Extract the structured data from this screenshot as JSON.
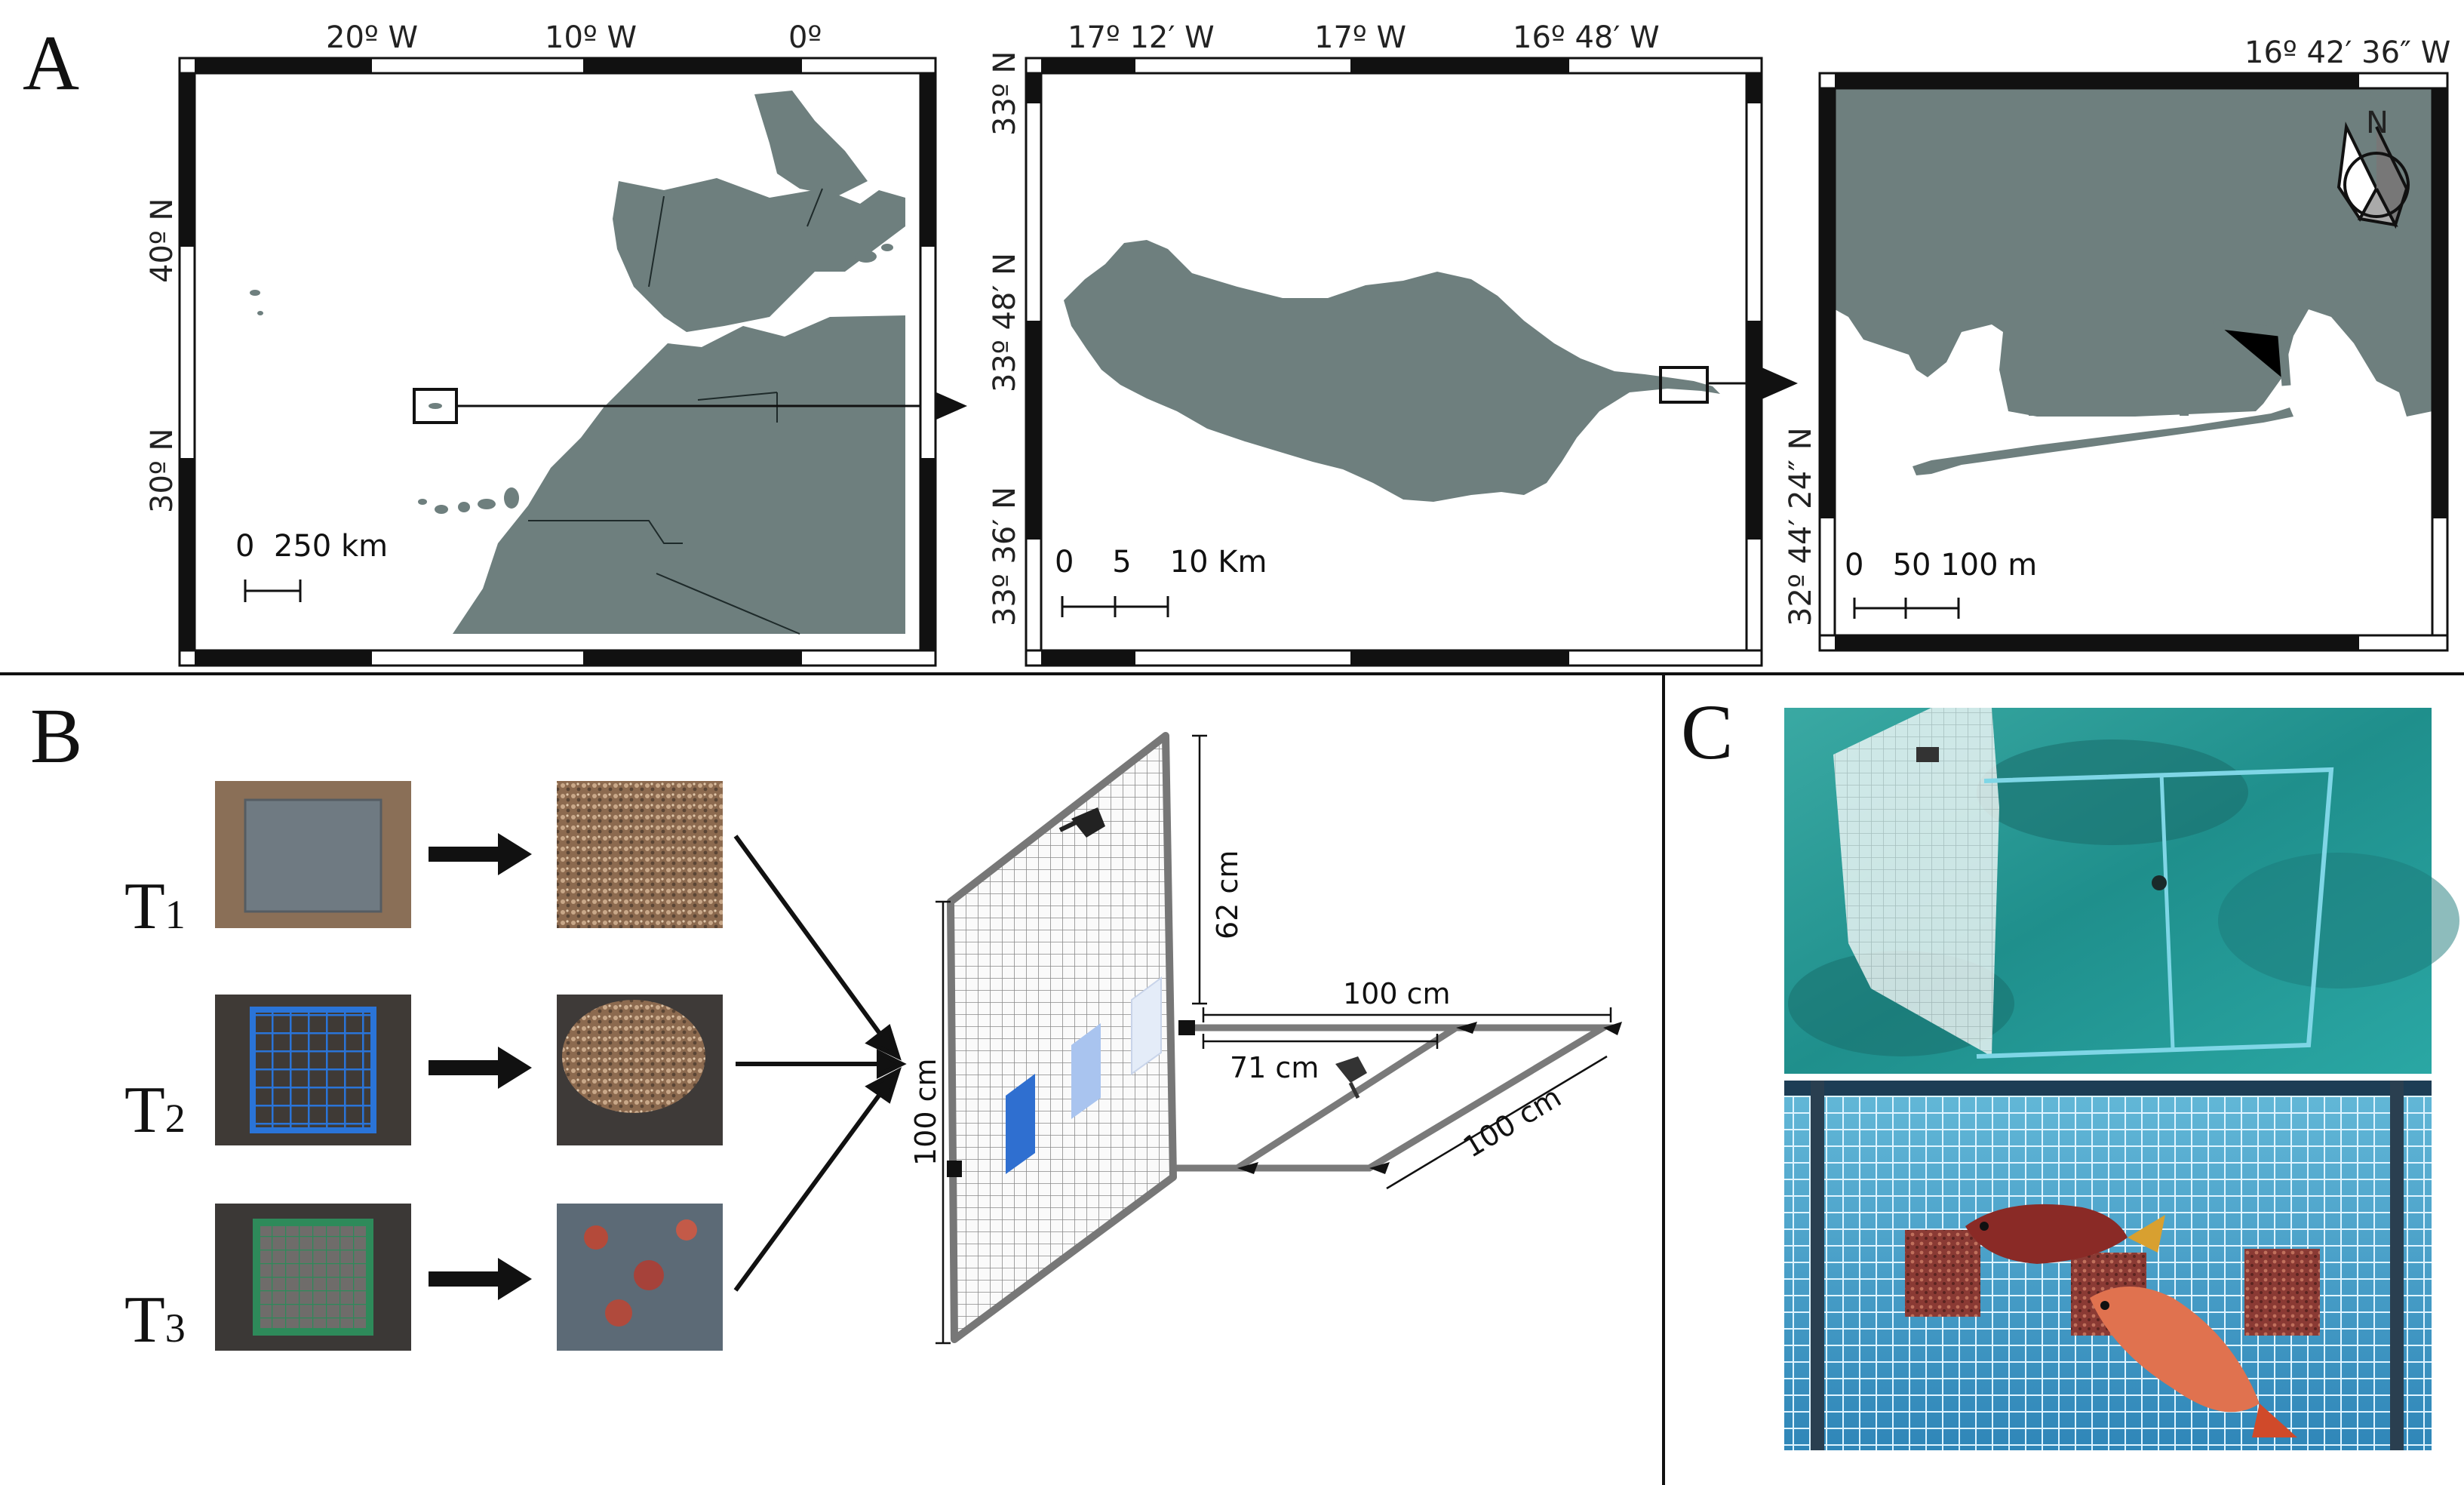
{
  "panels": {
    "a": {
      "label": "A"
    },
    "b": {
      "label": "B"
    },
    "c": {
      "label": "C"
    }
  },
  "maps": {
    "overview": {
      "lon_labels": [
        "20º W",
        "10º W",
        "0º"
      ],
      "lat_labels": [
        "40º N",
        "30º N"
      ],
      "scale_label": "0  250 km"
    },
    "madeira": {
      "lon_labels": [
        "17º 12′ W",
        "17º W",
        "16º 48′ W"
      ],
      "lat_labels": [
        "33º N",
        "33º 48′ N",
        "33º 36′ N"
      ],
      "scale_label": "0    5    10 Km"
    },
    "harbour": {
      "lon_labels": [
        "16º 42′ 36″ W"
      ],
      "lat_labels": [
        "32º 44′ 24″ N"
      ],
      "scale_label": "0   50 100 m",
      "north_label": "N"
    }
  },
  "treatments": [
    {
      "main": "T",
      "sub": "1"
    },
    {
      "main": "T",
      "sub": "2"
    },
    {
      "main": "T",
      "sub": "3"
    }
  ],
  "dimensions": {
    "panel_height": "62 cm",
    "side_length": "100 cm",
    "inner_span": "71 cm",
    "depth": "100 cm",
    "height_total": "100 cm"
  },
  "colors": {
    "land": "#6e7f7e",
    "tile_dark_blue": "#2f6fd0",
    "tile_mid_blue": "#a9c4ef",
    "tile_light_blue": "#e4ecf8",
    "underwater": "#1f8f8c"
  }
}
